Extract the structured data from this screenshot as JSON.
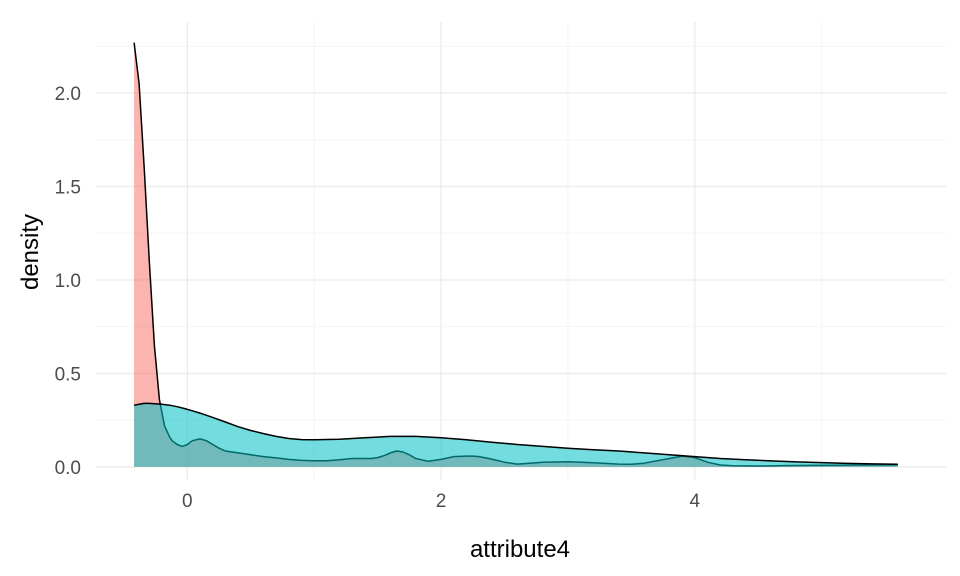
{
  "chart_data": {
    "type": "area",
    "xlabel": "attribute4",
    "ylabel": "density",
    "xlim": [
      -0.72,
      5.98
    ],
    "ylim": [
      -0.07,
      2.38
    ],
    "x_ticks": [
      0,
      2,
      4
    ],
    "x_tick_labels": [
      "0",
      "2",
      "4"
    ],
    "y_ticks": [
      0,
      0.5,
      1,
      1.5,
      2
    ],
    "y_tick_labels": [
      "0.0",
      "0.5",
      "1.0",
      "1.5",
      "2.0"
    ],
    "grid": true,
    "legend": "none",
    "series": [
      {
        "color": "#F8766D",
        "fill_opacity": 0.55,
        "x": [
          -0.42,
          -0.38,
          -0.34,
          -0.3,
          -0.26,
          -0.22,
          -0.18,
          -0.14,
          -0.12,
          -0.08,
          -0.04,
          0.0,
          0.04,
          0.1,
          0.15,
          0.2,
          0.25,
          0.3,
          0.4,
          0.5,
          0.6,
          0.7,
          0.8,
          0.9,
          1.0,
          1.1,
          1.2,
          1.3,
          1.4,
          1.45,
          1.5,
          1.55,
          1.6,
          1.65,
          1.7,
          1.75,
          1.8,
          1.9,
          2.0,
          2.1,
          2.2,
          2.25,
          2.3,
          2.4,
          2.5,
          2.6,
          2.7,
          2.8,
          3.0,
          3.2,
          3.4,
          3.5,
          3.6,
          3.8,
          3.9,
          4.0,
          4.1,
          4.2,
          4.3,
          4.5,
          4.7,
          4.9,
          5.1,
          5.3,
          5.5,
          5.6
        ],
        "y": [
          2.27,
          2.05,
          1.6,
          1.1,
          0.65,
          0.36,
          0.22,
          0.16,
          0.14,
          0.12,
          0.11,
          0.12,
          0.14,
          0.15,
          0.14,
          0.12,
          0.1,
          0.085,
          0.075,
          0.065,
          0.055,
          0.048,
          0.04,
          0.035,
          0.033,
          0.033,
          0.038,
          0.045,
          0.045,
          0.045,
          0.05,
          0.06,
          0.075,
          0.085,
          0.08,
          0.065,
          0.045,
          0.03,
          0.04,
          0.055,
          0.058,
          0.058,
          0.055,
          0.042,
          0.025,
          0.015,
          0.02,
          0.025,
          0.028,
          0.022,
          0.015,
          0.014,
          0.02,
          0.045,
          0.058,
          0.05,
          0.025,
          0.01,
          0.006,
          0.005,
          0.007,
          0.008,
          0.009,
          0.01,
          0.011,
          0.012
        ]
      },
      {
        "color": "#00BFC4",
        "fill_opacity": 0.55,
        "x": [
          -0.42,
          -0.38,
          -0.34,
          -0.3,
          -0.26,
          -0.2,
          -0.14,
          -0.08,
          -0.02,
          0.04,
          0.1,
          0.2,
          0.3,
          0.4,
          0.5,
          0.6,
          0.7,
          0.8,
          0.9,
          1.0,
          1.2,
          1.4,
          1.6,
          1.8,
          2.0,
          2.2,
          2.4,
          2.6,
          2.8,
          3.0,
          3.2,
          3.4,
          3.6,
          3.8,
          4.0,
          4.2,
          4.4,
          4.6,
          4.8,
          5.0,
          5.2,
          5.4,
          5.6
        ],
        "y": [
          0.33,
          0.335,
          0.34,
          0.34,
          0.338,
          0.335,
          0.33,
          0.322,
          0.312,
          0.3,
          0.288,
          0.265,
          0.24,
          0.215,
          0.195,
          0.178,
          0.163,
          0.152,
          0.146,
          0.145,
          0.148,
          0.156,
          0.163,
          0.163,
          0.156,
          0.145,
          0.132,
          0.12,
          0.11,
          0.1,
          0.092,
          0.085,
          0.075,
          0.065,
          0.055,
          0.045,
          0.038,
          0.032,
          0.027,
          0.023,
          0.019,
          0.016,
          0.014
        ]
      }
    ]
  }
}
